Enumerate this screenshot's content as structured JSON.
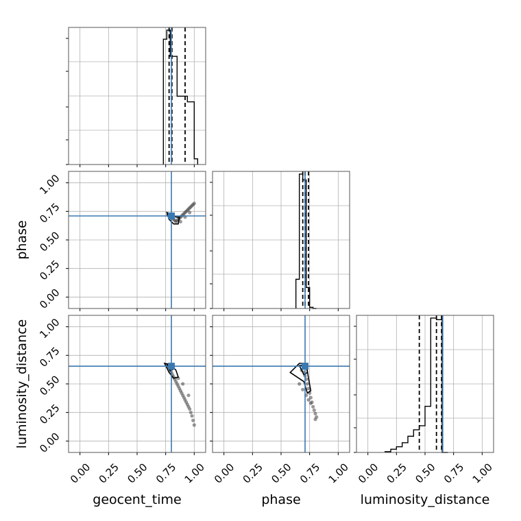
{
  "chart_data": {
    "type": "corner",
    "parameters": [
      "geocent_time",
      "phase",
      "luminosity_distance"
    ],
    "axis_range": [
      -0.1,
      1.1
    ],
    "tick_values": [
      0.0,
      0.25,
      0.5,
      0.75,
      1.0
    ],
    "tick_labels": [
      "0.00",
      "0.25",
      "0.50",
      "0.75",
      "1.00"
    ],
    "grid": true,
    "truth_color": "#3a78b0",
    "line_color": "#000000",
    "truths": {
      "geocent_time": 0.8,
      "phase": 0.71,
      "luminosity_distance": 0.655
    },
    "histograms": [
      {
        "parameter": "geocent_time",
        "bin_edges": [
          0.73,
          0.76,
          0.79,
          0.82,
          0.85,
          0.88,
          0.91,
          0.94,
          0.97,
          1.0,
          1.03
        ],
        "counts": [
          1.1,
          1.18,
          0.95,
          0.95,
          0.6,
          0.6,
          0.6,
          0.55,
          0.55,
          0.05
        ],
        "quantiles": [
          0.78,
          0.805,
          0.92
        ]
      },
      {
        "parameter": "phase",
        "bin_edges": [
          0.63,
          0.66,
          0.69,
          0.72,
          0.75,
          0.78,
          0.81
        ],
        "counts": [
          0.25,
          1.15,
          1.1,
          0.18,
          0.01,
          0.0
        ],
        "quantiles": [
          0.69,
          0.71,
          0.74
        ]
      },
      {
        "parameter": "luminosity_distance",
        "bin_edges": [
          0.15,
          0.2,
          0.25,
          0.3,
          0.35,
          0.4,
          0.45,
          0.5,
          0.55,
          0.6,
          0.65,
          0.7
        ],
        "counts": [
          0.01,
          0.04,
          0.07,
          0.12,
          0.2,
          0.28,
          0.33,
          0.57,
          1.66,
          1.64,
          0.0
        ],
        "quantiles": [
          0.45,
          0.6,
          0.645
        ]
      }
    ],
    "scatter_panels": [
      {
        "x_param": "geocent_time",
        "y_param": "phase",
        "points": [
          [
            0.77,
            0.72
          ],
          [
            0.78,
            0.71
          ],
          [
            0.79,
            0.7
          ],
          [
            0.8,
            0.71
          ],
          [
            0.81,
            0.69
          ],
          [
            0.82,
            0.68
          ],
          [
            0.83,
            0.67
          ],
          [
            0.84,
            0.66
          ],
          [
            0.85,
            0.67
          ],
          [
            0.86,
            0.68
          ],
          [
            0.87,
            0.69
          ],
          [
            0.88,
            0.7
          ],
          [
            0.89,
            0.71
          ],
          [
            0.9,
            0.72
          ],
          [
            0.91,
            0.73
          ],
          [
            0.92,
            0.74
          ],
          [
            0.93,
            0.75
          ],
          [
            0.94,
            0.76
          ],
          [
            0.95,
            0.77
          ],
          [
            0.96,
            0.78
          ],
          [
            0.97,
            0.79
          ],
          [
            0.98,
            0.8
          ],
          [
            0.99,
            0.81
          ],
          [
            1.0,
            0.82
          ],
          [
            0.88,
            0.66
          ],
          [
            0.92,
            0.7
          ],
          [
            0.96,
            0.74
          ]
        ],
        "contours": [
          [
            [
              0.76,
              0.74
            ],
            [
              0.8,
              0.73
            ],
            [
              0.84,
              0.7
            ],
            [
              0.87,
              0.7
            ],
            [
              0.86,
              0.64
            ],
            [
              0.82,
              0.64
            ],
            [
              0.78,
              0.68
            ],
            [
              0.76,
              0.74
            ]
          ],
          [
            [
              0.78,
              0.725
            ],
            [
              0.8,
              0.72
            ],
            [
              0.82,
              0.7
            ],
            [
              0.81,
              0.69
            ],
            [
              0.79,
              0.695
            ],
            [
              0.78,
              0.725
            ]
          ]
        ]
      },
      {
        "x_param": "geocent_time",
        "y_param": "luminosity_distance",
        "points": [
          [
            0.77,
            0.66
          ],
          [
            0.78,
            0.64
          ],
          [
            0.79,
            0.62
          ],
          [
            0.8,
            0.6
          ],
          [
            0.81,
            0.58
          ],
          [
            0.82,
            0.56
          ],
          [
            0.83,
            0.54
          ],
          [
            0.84,
            0.52
          ],
          [
            0.85,
            0.5
          ],
          [
            0.86,
            0.48
          ],
          [
            0.87,
            0.46
          ],
          [
            0.88,
            0.44
          ],
          [
            0.89,
            0.42
          ],
          [
            0.9,
            0.4
          ],
          [
            0.91,
            0.38
          ],
          [
            0.92,
            0.36
          ],
          [
            0.93,
            0.34
          ],
          [
            0.94,
            0.32
          ],
          [
            0.95,
            0.3
          ],
          [
            0.96,
            0.28
          ],
          [
            0.97,
            0.25
          ],
          [
            0.98,
            0.22
          ],
          [
            0.99,
            0.18
          ],
          [
            1.0,
            0.14
          ],
          [
            0.86,
            0.55
          ],
          [
            0.9,
            0.5
          ],
          [
            0.95,
            0.4
          ]
        ],
        "contours": [
          [
            [
              0.74,
              0.68
            ],
            [
              0.79,
              0.67
            ],
            [
              0.84,
              0.62
            ],
            [
              0.86,
              0.56
            ],
            [
              0.82,
              0.55
            ],
            [
              0.78,
              0.6
            ],
            [
              0.74,
              0.68
            ]
          ],
          [
            [
              0.76,
              0.67
            ],
            [
              0.8,
              0.665
            ],
            [
              0.82,
              0.63
            ],
            [
              0.79,
              0.615
            ],
            [
              0.76,
              0.67
            ]
          ]
        ]
      },
      {
        "x_param": "phase",
        "y_param": "luminosity_distance",
        "points": [
          [
            0.68,
            0.62
          ],
          [
            0.7,
            0.6
          ],
          [
            0.71,
            0.57
          ],
          [
            0.72,
            0.54
          ],
          [
            0.73,
            0.5
          ],
          [
            0.74,
            0.46
          ],
          [
            0.75,
            0.42
          ],
          [
            0.76,
            0.38
          ],
          [
            0.77,
            0.34
          ],
          [
            0.78,
            0.3
          ],
          [
            0.79,
            0.27
          ],
          [
            0.8,
            0.24
          ],
          [
            0.81,
            0.21
          ],
          [
            0.8,
            0.19
          ],
          [
            0.74,
            0.36
          ],
          [
            0.76,
            0.33
          ],
          [
            0.66,
            0.5
          ],
          [
            0.69,
            0.45
          ],
          [
            0.72,
            0.4
          ]
        ],
        "contours": [
          [
            [
              0.58,
              0.6
            ],
            [
              0.66,
              0.68
            ],
            [
              0.72,
              0.68
            ],
            [
              0.74,
              0.55
            ],
            [
              0.76,
              0.44
            ],
            [
              0.73,
              0.42
            ],
            [
              0.7,
              0.52
            ],
            [
              0.58,
              0.6
            ]
          ],
          [
            [
              0.66,
              0.66
            ],
            [
              0.72,
              0.67
            ],
            [
              0.73,
              0.6
            ],
            [
              0.7,
              0.58
            ],
            [
              0.66,
              0.66
            ]
          ]
        ]
      }
    ]
  }
}
